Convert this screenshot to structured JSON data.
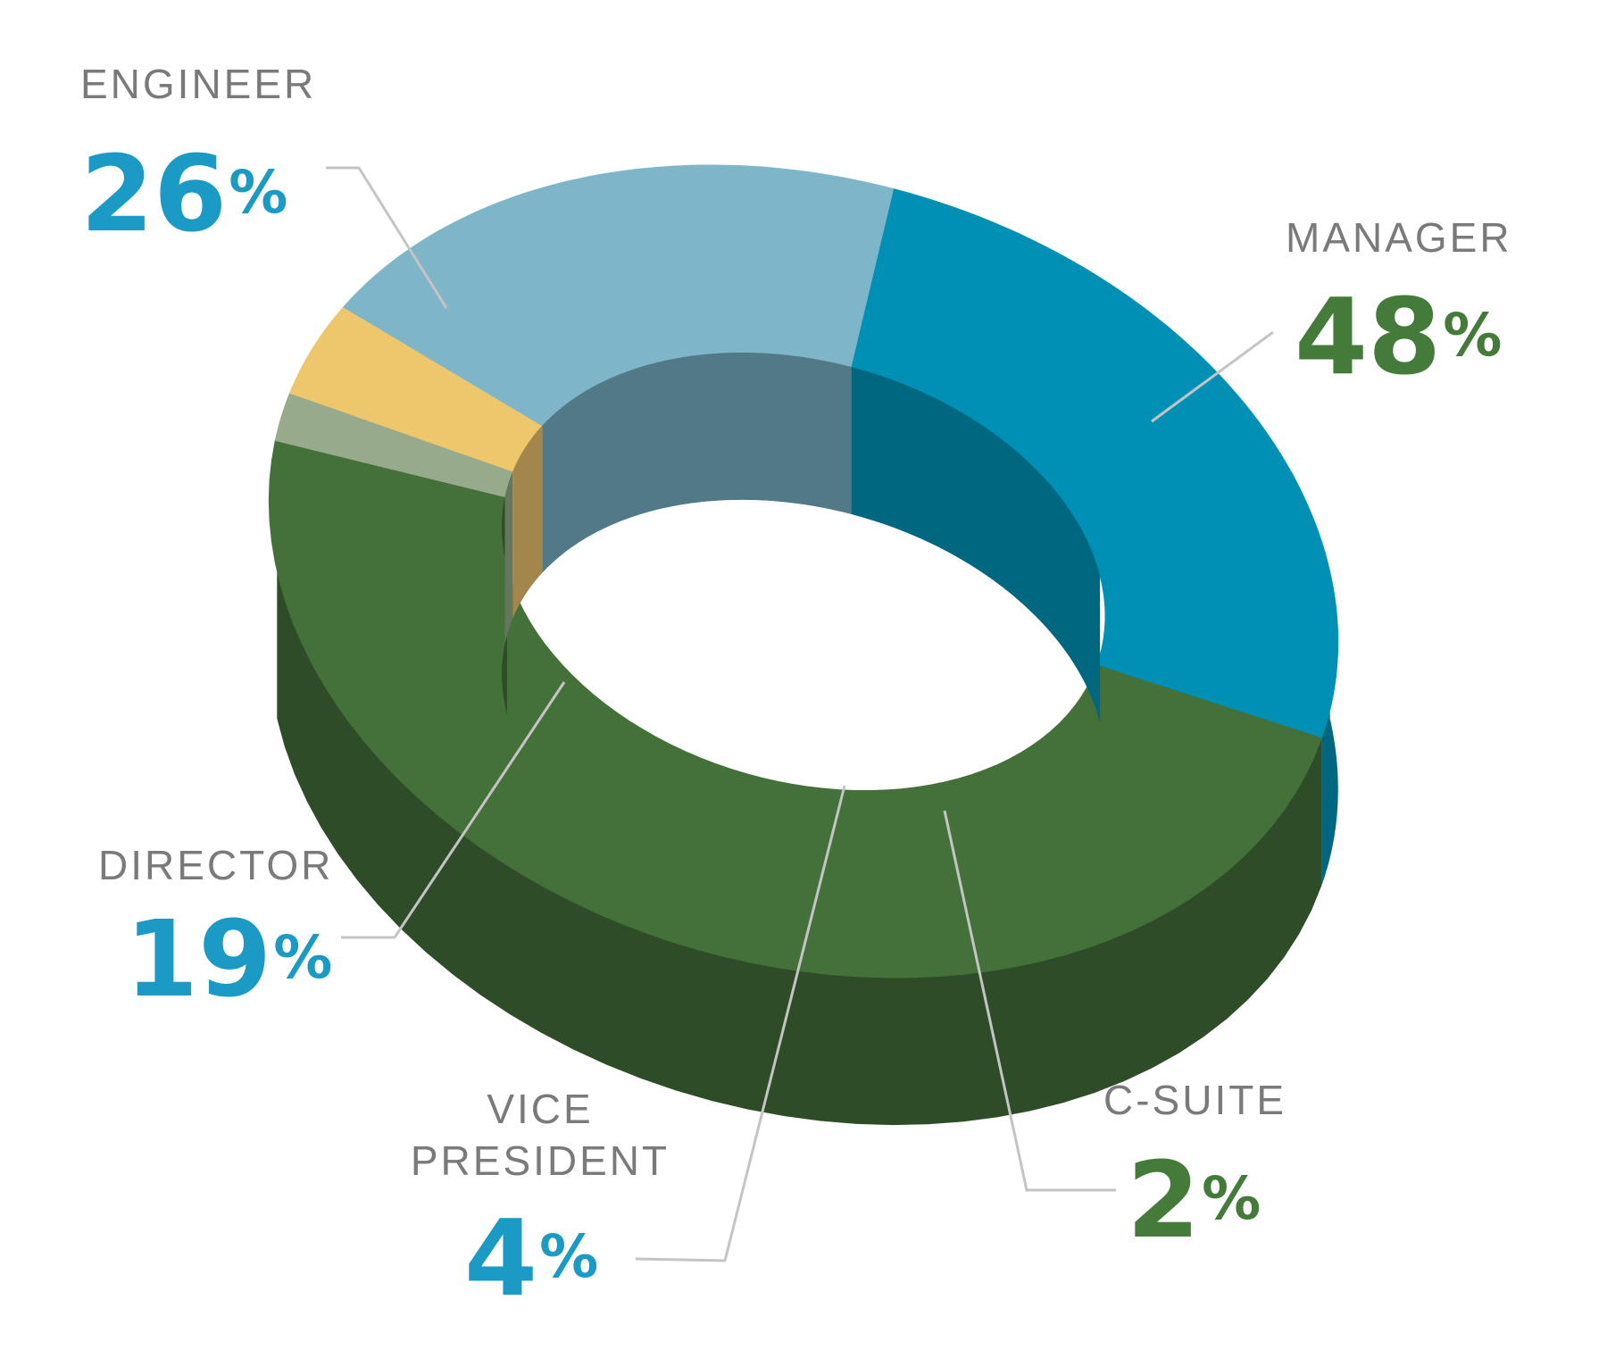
{
  "chart_data": {
    "type": "pie",
    "style": "3d-donut",
    "percent_symbol": "%",
    "slices": [
      {
        "label": "ENGINEER",
        "label_lines": [
          "ENGINEER"
        ],
        "value": 26,
        "top_color": "#0090b5",
        "side_color": "#006781",
        "text_color": "#1a9ac4",
        "label_side": "left"
      },
      {
        "label": "MANAGER",
        "label_lines": [
          "MANAGER"
        ],
        "value": 48,
        "top_color": "#447039",
        "side_color": "#2e4c27",
        "text_color": "#447a3a",
        "label_side": "right"
      },
      {
        "label": "C-SUITE",
        "label_lines": [
          "C-SUITE"
        ],
        "value": 2,
        "top_color": "#97aa8c",
        "side_color": "#65765e",
        "text_color": "#447a3a",
        "label_side": "right"
      },
      {
        "label": "VICE PRESIDENT",
        "label_lines": [
          "VICE",
          "PRESIDENT"
        ],
        "value": 4,
        "top_color": "#eec76d",
        "side_color": "#a2864b",
        "text_color": "#1a9ac4",
        "label_side": "left"
      },
      {
        "label": "DIRECTOR",
        "label_lines": [
          "DIRECTOR"
        ],
        "value": 19,
        "top_color": "#7fb5c9",
        "side_color": "#527987",
        "text_color": "#1a9ac4",
        "label_side": "left"
      }
    ]
  }
}
